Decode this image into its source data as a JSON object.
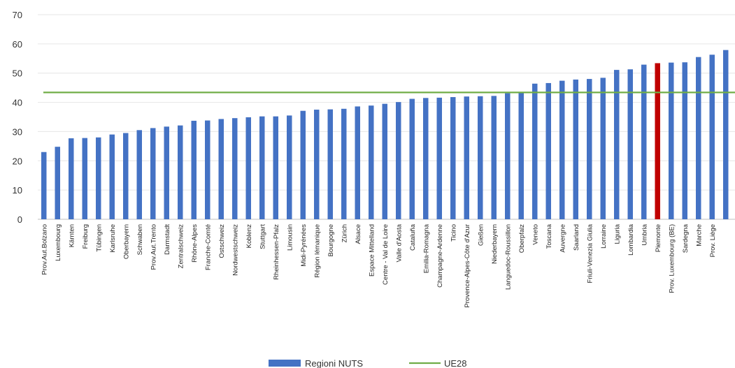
{
  "chart_data": {
    "type": "bar",
    "title": "",
    "xlabel": "",
    "ylabel": "",
    "ylim": [
      0,
      70
    ],
    "yticks": [
      0,
      10,
      20,
      30,
      40,
      50,
      60,
      70
    ],
    "grid": true,
    "legend_position": "bottom",
    "categories": [
      "Prov.Aut.Bolzano",
      "Luxembourg",
      "Kärnten",
      "Freiburg",
      "Tübingen",
      "Karlsruhe",
      "Oberbayern",
      "Schwaben",
      "Prov.Aut.Trento",
      "Darmstadt",
      "Zentralschweiz",
      "Rhône-Alpes",
      "Franche-Comté",
      "Ostschweiz",
      "Nordwestschweiz",
      "Koblenz",
      "Stuttgart",
      "Rheinhessen-Pfalz",
      "Limousin",
      "Midi-Pyrénées",
      "Région lémanique",
      "Bourgogne",
      "Zürich",
      "Alsace",
      "Espace Mittelland",
      "Centre - Val de Loire",
      "Valle d'Aosta",
      "Cataluña",
      "Emilia-Romagna",
      "Champagne-Ardenne",
      "Ticino",
      "Provence-Alpes-Côte d'Azur",
      "Gießen",
      "Niederbayern",
      "Languedoc-Roussillon",
      "Oberpfalz",
      "Veneto",
      "Toscana",
      "Auvergne",
      "Saarland",
      "Friuli-Venezia Giulia",
      "Lorraine",
      "Liguria",
      "Lombardia",
      "Umbria",
      "Piemonte",
      "Prov. Luxembourg (BE)",
      "Sardegna",
      "Marche",
      "Prov. Liège",
      ""
    ],
    "series": [
      {
        "name": "Regioni NUTS",
        "color": "#4472C4",
        "highlight_color": "#C00000",
        "highlight_category": "Piemonte",
        "values": [
          23.0,
          24.8,
          27.7,
          27.8,
          28.0,
          29.0,
          29.5,
          30.5,
          31.2,
          31.7,
          32.1,
          33.7,
          33.8,
          34.3,
          34.6,
          34.9,
          35.2,
          35.2,
          35.5,
          37.1,
          37.5,
          37.6,
          37.8,
          38.6,
          38.9,
          39.5,
          40.1,
          41.2,
          41.5,
          41.6,
          41.8,
          42.0,
          42.1,
          42.2,
          43.1,
          43.3,
          46.4,
          46.6,
          47.4,
          47.8,
          48.0,
          48.4,
          51.1,
          51.3,
          52.9,
          53.4,
          53.6,
          53.7,
          55.5,
          56.3,
          57.9
        ]
      },
      {
        "name": "UE28",
        "type": "line",
        "color": "#70AD47",
        "value": 43.4
      }
    ]
  }
}
